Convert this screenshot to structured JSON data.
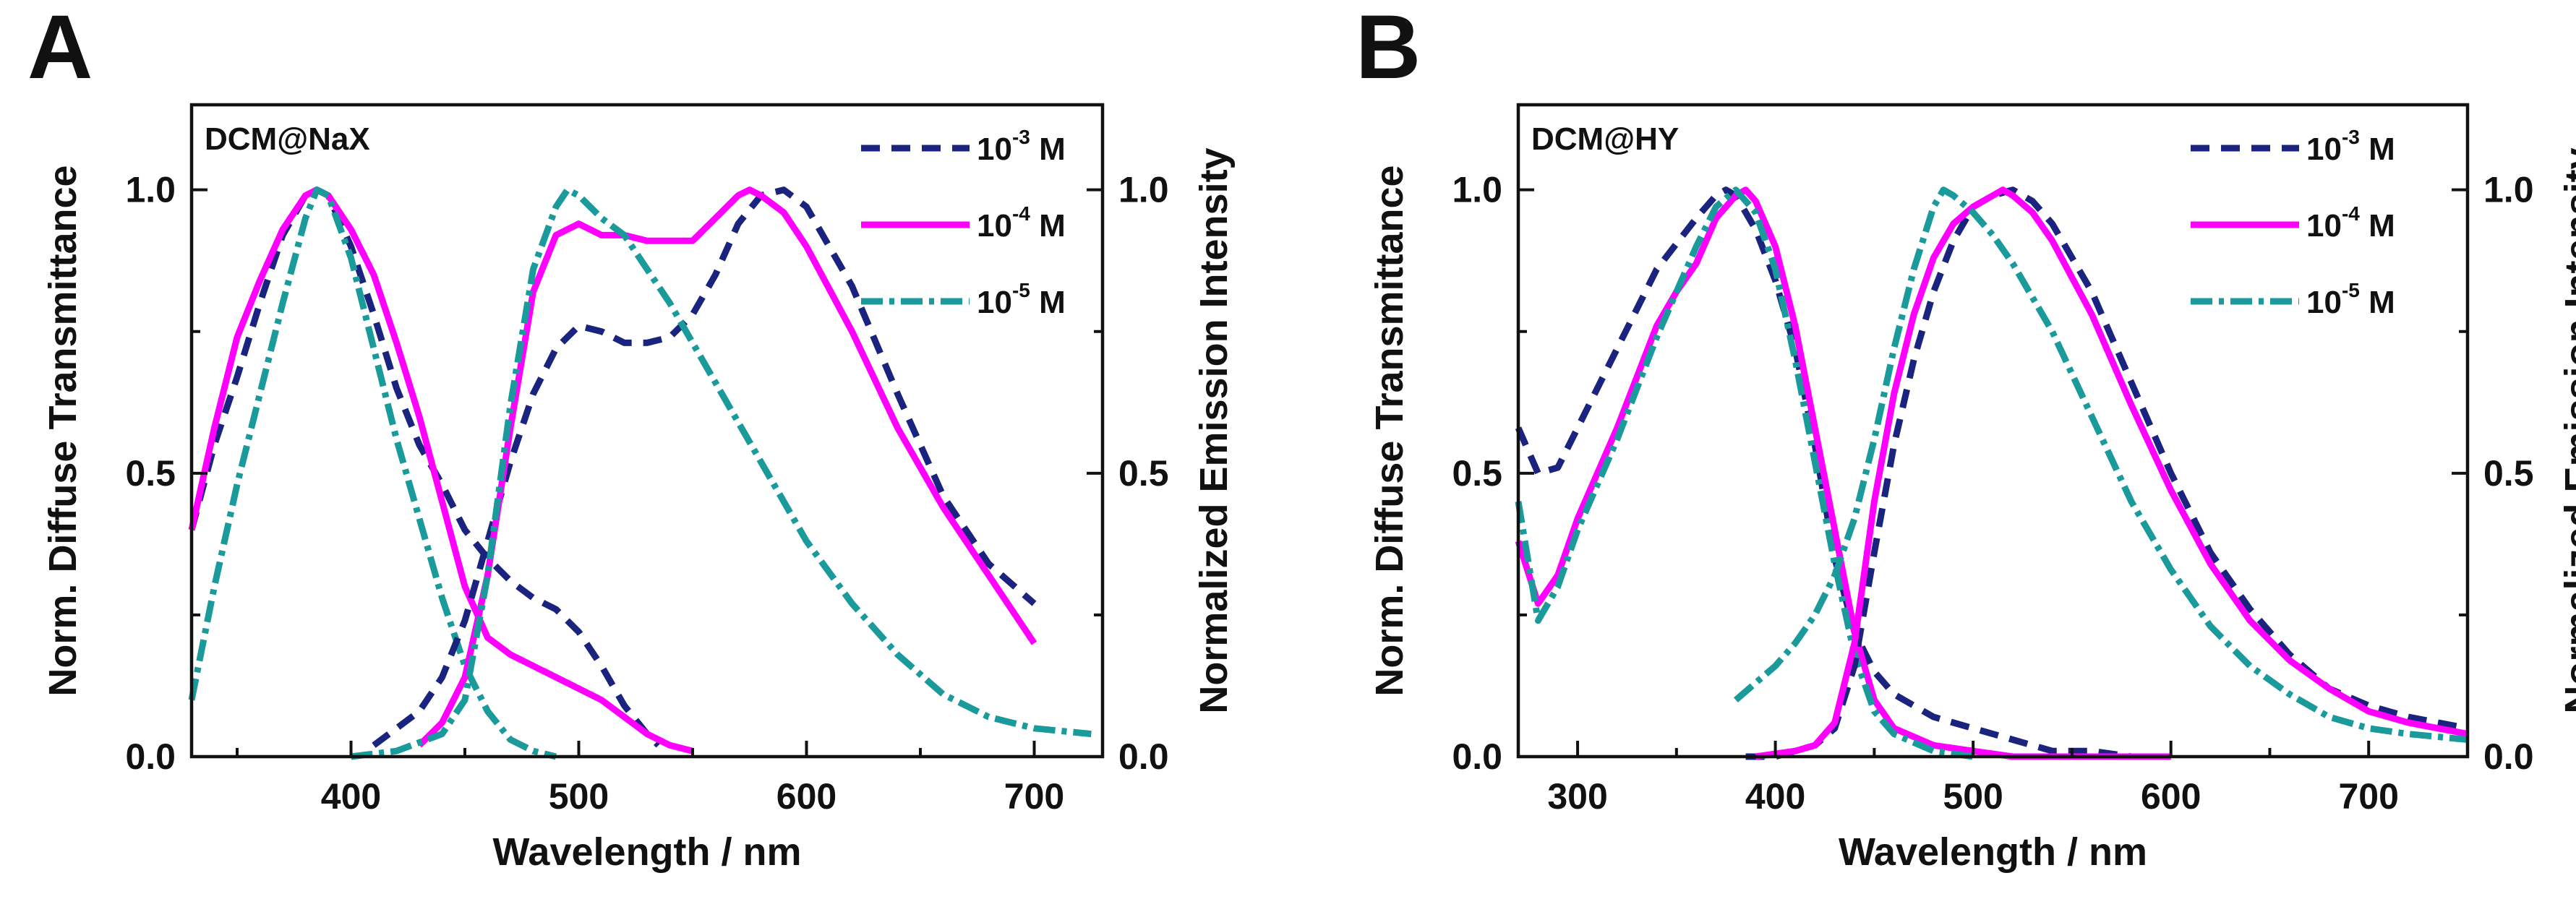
{
  "chart_data": [
    {
      "type": "line",
      "panel_letter": "A",
      "sample": "DCM@NaX",
      "xlabel": "Wavelength / nm",
      "ylabel_left": "Norm. Diffuse Transmittance",
      "ylabel_right": "Normalized Emission Intensity",
      "xlim": [
        330,
        730
      ],
      "ylim": [
        0,
        1.15
      ],
      "xticks": [
        400,
        500,
        600,
        700
      ],
      "xtick_labels": [
        "400",
        "500",
        "600",
        "700"
      ],
      "yticks": [
        0,
        0.5,
        1
      ],
      "ytick_labels": [
        "0.0",
        "0.5",
        "1.0"
      ],
      "legend": [
        {
          "base": "10",
          "exp": "-3",
          "unit": "M",
          "color": "#1a237e",
          "style": "dash"
        },
        {
          "base": "10",
          "exp": "-4",
          "unit": "M",
          "color": "#ff00ff",
          "style": "solid"
        },
        {
          "base": "10",
          "exp": "-5",
          "unit": "M",
          "color": "#1a9a9a",
          "style": "dashdot"
        }
      ],
      "series": [
        {
          "name": "10-3 M transmittance",
          "color": "#1a237e",
          "style": "dash",
          "x": [
            330,
            340,
            350,
            360,
            370,
            380,
            385,
            390,
            400,
            410,
            420,
            430,
            440,
            450,
            460,
            470,
            480,
            490,
            500,
            510,
            520,
            530,
            535
          ],
          "y": [
            0.4,
            0.55,
            0.67,
            0.8,
            0.92,
            0.99,
            1.0,
            0.99,
            0.9,
            0.78,
            0.65,
            0.55,
            0.48,
            0.4,
            0.35,
            0.31,
            0.28,
            0.26,
            0.22,
            0.16,
            0.09,
            0.04,
            0.02
          ]
        },
        {
          "name": "10-4 M transmittance",
          "color": "#ff00ff",
          "style": "solid",
          "x": [
            330,
            340,
            350,
            360,
            370,
            380,
            385,
            390,
            400,
            410,
            420,
            430,
            440,
            450,
            460,
            470,
            480,
            490,
            500,
            510,
            520,
            530,
            540,
            550
          ],
          "y": [
            0.4,
            0.58,
            0.74,
            0.84,
            0.93,
            0.99,
            1.0,
            0.99,
            0.93,
            0.85,
            0.73,
            0.6,
            0.45,
            0.3,
            0.21,
            0.18,
            0.16,
            0.14,
            0.12,
            0.1,
            0.07,
            0.04,
            0.02,
            0.01
          ]
        },
        {
          "name": "10-5 M transmittance",
          "color": "#1a9a9a",
          "style": "dashdot",
          "x": [
            330,
            340,
            350,
            360,
            370,
            380,
            385,
            390,
            400,
            410,
            420,
            430,
            440,
            450,
            460,
            470,
            480,
            490
          ],
          "y": [
            0.1,
            0.3,
            0.48,
            0.64,
            0.8,
            0.95,
            1.0,
            0.99,
            0.88,
            0.72,
            0.56,
            0.42,
            0.28,
            0.16,
            0.08,
            0.03,
            0.01,
            0.0
          ]
        },
        {
          "name": "10-3 M emission",
          "color": "#1a237e",
          "style": "dash",
          "x": [
            410,
            420,
            430,
            440,
            450,
            460,
            470,
            480,
            490,
            500,
            510,
            520,
            530,
            540,
            550,
            560,
            570,
            580,
            590,
            600,
            620,
            640,
            660,
            680,
            700
          ],
          "y": [
            0.02,
            0.05,
            0.08,
            0.14,
            0.24,
            0.38,
            0.52,
            0.64,
            0.72,
            0.76,
            0.75,
            0.73,
            0.73,
            0.74,
            0.78,
            0.85,
            0.94,
            0.99,
            1.0,
            0.97,
            0.83,
            0.64,
            0.46,
            0.34,
            0.27
          ]
        },
        {
          "name": "10-4 M emission",
          "color": "#ff00ff",
          "style": "solid",
          "x": [
            430,
            440,
            450,
            460,
            470,
            480,
            490,
            500,
            510,
            520,
            530,
            540,
            550,
            560,
            570,
            575,
            580,
            590,
            600,
            620,
            640,
            660,
            680,
            700
          ],
          "y": [
            0.02,
            0.06,
            0.14,
            0.32,
            0.58,
            0.82,
            0.92,
            0.94,
            0.92,
            0.92,
            0.91,
            0.91,
            0.91,
            0.95,
            0.99,
            1.0,
            0.99,
            0.96,
            0.9,
            0.75,
            0.58,
            0.44,
            0.32,
            0.2
          ]
        },
        {
          "name": "10-5 M emission",
          "color": "#1a9a9a",
          "style": "dashdot",
          "x": [
            400,
            420,
            440,
            450,
            460,
            470,
            480,
            490,
            495,
            500,
            510,
            520,
            530,
            540,
            560,
            580,
            600,
            620,
            640,
            660,
            680,
            700,
            725
          ],
          "y": [
            0.0,
            0.01,
            0.04,
            0.1,
            0.32,
            0.62,
            0.86,
            0.97,
            1.0,
            0.99,
            0.95,
            0.92,
            0.86,
            0.8,
            0.66,
            0.52,
            0.38,
            0.27,
            0.18,
            0.11,
            0.07,
            0.05,
            0.04
          ]
        }
      ]
    },
    {
      "type": "line",
      "panel_letter": "B",
      "sample": "DCM@HY",
      "xlabel": "Wavelength / nm",
      "ylabel_left": "Norm. Diffuse Transmittance",
      "ylabel_right": "Normalized Emission Intensity",
      "xlim": [
        270,
        750
      ],
      "ylim": [
        0,
        1.15
      ],
      "xticks": [
        300,
        400,
        500,
        600,
        700
      ],
      "xtick_labels": [
        "300",
        "400",
        "500",
        "600",
        "700"
      ],
      "yticks": [
        0,
        0.5,
        1
      ],
      "ytick_labels": [
        "0.0",
        "0.5",
        "1.0"
      ],
      "legend": [
        {
          "base": "10",
          "exp": "-3",
          "unit": "M",
          "color": "#1a237e",
          "style": "dash"
        },
        {
          "base": "10",
          "exp": "-4",
          "unit": "M",
          "color": "#ff00ff",
          "style": "solid"
        },
        {
          "base": "10",
          "exp": "-5",
          "unit": "M",
          "color": "#1a9a9a",
          "style": "dashdot"
        }
      ],
      "series": [
        {
          "name": "10-3 M transmittance",
          "color": "#1a237e",
          "style": "dash",
          "x": [
            270,
            280,
            290,
            300,
            320,
            340,
            360,
            370,
            375,
            380,
            390,
            400,
            410,
            420,
            430,
            440,
            450,
            460,
            480,
            500,
            520,
            540,
            560,
            580,
            600
          ],
          "y": [
            0.58,
            0.5,
            0.51,
            0.58,
            0.72,
            0.86,
            0.95,
            0.99,
            1.0,
            0.99,
            0.93,
            0.84,
            0.72,
            0.55,
            0.35,
            0.22,
            0.15,
            0.11,
            0.07,
            0.05,
            0.03,
            0.01,
            0.01,
            0.0,
            0.0
          ]
        },
        {
          "name": "10-4 M transmittance",
          "color": "#ff00ff",
          "style": "solid",
          "x": [
            270,
            280,
            290,
            300,
            320,
            340,
            350,
            360,
            370,
            380,
            385,
            390,
            400,
            410,
            420,
            430,
            440,
            450,
            460,
            480,
            500,
            520,
            560,
            600
          ],
          "y": [
            0.38,
            0.27,
            0.32,
            0.42,
            0.58,
            0.76,
            0.82,
            0.87,
            0.95,
            0.99,
            1.0,
            0.98,
            0.9,
            0.76,
            0.58,
            0.4,
            0.22,
            0.1,
            0.05,
            0.02,
            0.01,
            0.0,
            0.0,
            0.0
          ]
        },
        {
          "name": "10-5 M transmittance",
          "color": "#1a9a9a",
          "style": "dashdot",
          "x": [
            270,
            280,
            290,
            300,
            320,
            340,
            360,
            370,
            380,
            390,
            400,
            410,
            420,
            430,
            440,
            450,
            460,
            480,
            500
          ],
          "y": [
            0.45,
            0.24,
            0.3,
            0.4,
            0.56,
            0.74,
            0.9,
            0.97,
            1.0,
            0.96,
            0.86,
            0.7,
            0.52,
            0.34,
            0.18,
            0.08,
            0.04,
            0.01,
            0.0
          ]
        },
        {
          "name": "10-3 M emission",
          "color": "#1a237e",
          "style": "dash",
          "x": [
            385,
            400,
            410,
            420,
            430,
            440,
            450,
            460,
            470,
            480,
            490,
            500,
            510,
            520,
            530,
            540,
            560,
            580,
            600,
            620,
            640,
            660,
            680,
            700,
            720,
            750
          ],
          "y": [
            0.0,
            0.0,
            0.01,
            0.02,
            0.05,
            0.16,
            0.36,
            0.55,
            0.7,
            0.82,
            0.91,
            0.97,
            0.99,
            1.0,
            0.98,
            0.94,
            0.82,
            0.66,
            0.5,
            0.36,
            0.26,
            0.18,
            0.12,
            0.09,
            0.07,
            0.05
          ]
        },
        {
          "name": "10-4 M emission",
          "color": "#ff00ff",
          "style": "solid",
          "x": [
            390,
            410,
            420,
            430,
            440,
            450,
            460,
            470,
            480,
            490,
            500,
            510,
            515,
            520,
            530,
            540,
            560,
            580,
            600,
            620,
            640,
            660,
            680,
            700,
            720,
            750
          ],
          "y": [
            0.0,
            0.01,
            0.02,
            0.06,
            0.2,
            0.45,
            0.64,
            0.78,
            0.88,
            0.94,
            0.97,
            0.99,
            1.0,
            0.99,
            0.96,
            0.91,
            0.78,
            0.62,
            0.47,
            0.34,
            0.24,
            0.17,
            0.12,
            0.08,
            0.06,
            0.04
          ]
        },
        {
          "name": "10-5 M emission",
          "color": "#1a9a9a",
          "style": "dashdot",
          "x": [
            380,
            390,
            400,
            410,
            420,
            430,
            440,
            450,
            460,
            470,
            480,
            485,
            490,
            500,
            510,
            520,
            540,
            560,
            580,
            600,
            620,
            640,
            660,
            680,
            700,
            720,
            750
          ],
          "y": [
            0.1,
            0.13,
            0.16,
            0.2,
            0.25,
            0.32,
            0.42,
            0.56,
            0.72,
            0.86,
            0.97,
            1.0,
            0.99,
            0.96,
            0.92,
            0.87,
            0.75,
            0.6,
            0.45,
            0.33,
            0.23,
            0.16,
            0.11,
            0.07,
            0.05,
            0.04,
            0.03
          ]
        }
      ]
    }
  ]
}
